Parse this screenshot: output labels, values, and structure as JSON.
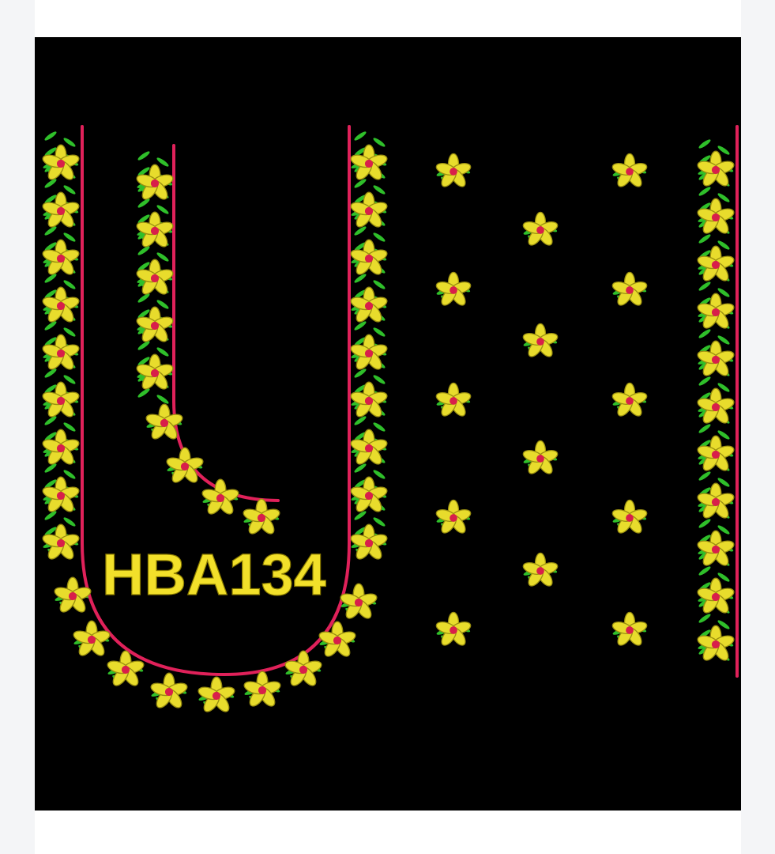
{
  "design": {
    "code": "HBA134",
    "code_color": "#f2e02a",
    "background_color": "#000000",
    "trim_color": "#e0215a",
    "leaf_color": "#2fbf2a",
    "petal_color": "#e8dc2c",
    "flower_center_color": "#d81f4a"
  },
  "icons": {
    "motif": "flower-motif-icon",
    "vine": "leaf-vine-icon"
  }
}
